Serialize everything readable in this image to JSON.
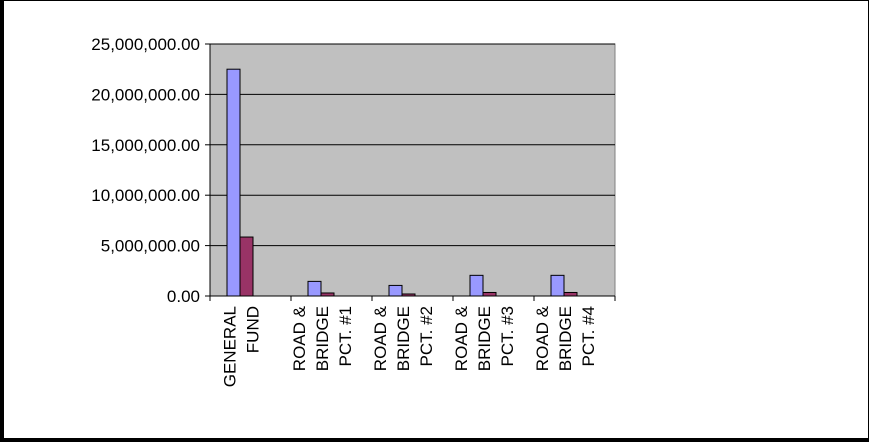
{
  "chart_data": {
    "type": "bar",
    "title": "",
    "xlabel": "",
    "ylabel": "",
    "categories": [
      [
        "GENERAL",
        "FUND"
      ],
      [
        "ROAD &",
        "BRIDGE",
        "PCT. #1"
      ],
      [
        "ROAD &",
        "BRIDGE",
        "PCT. #2"
      ],
      [
        "ROAD &",
        "BRIDGE",
        "PCT. #3"
      ],
      [
        "ROAD &",
        "BRIDGE",
        "PCT. #4"
      ]
    ],
    "series": [
      {
        "values": [
          22500000,
          1450000,
          1050000,
          2050000,
          2050000
        ],
        "color": "#9999ff"
      },
      {
        "values": [
          5850000,
          300000,
          200000,
          350000,
          350000
        ],
        "color": "#993366"
      }
    ],
    "ylim": [
      0,
      25000000
    ],
    "yticks": [
      "0.00",
      "5,000,000.00",
      "10,000,000.00",
      "15,000,000.00",
      "20,000,000.00",
      "25,000,000.00"
    ],
    "plot_background": "#c0c0c0",
    "grid": true,
    "legend": "none"
  }
}
